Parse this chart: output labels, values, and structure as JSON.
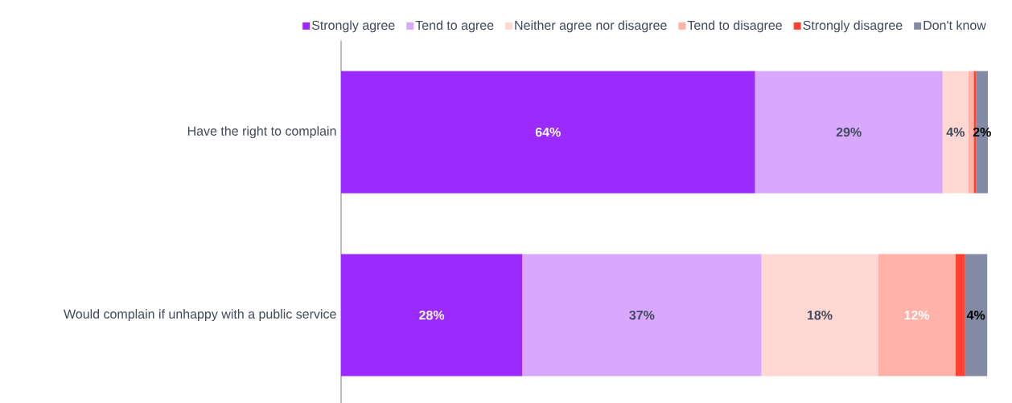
{
  "chart_data": {
    "type": "bar",
    "orientation": "horizontal",
    "stacked": true,
    "categories": [
      "Have the right to complain",
      "Would complain if unhappy with a public service"
    ],
    "xlim": [
      0,
      100
    ],
    "tick_labels": "y",
    "legend": "top",
    "series": [
      {
        "name": "Strongly agree",
        "color": "#9b2aff",
        "values": [
          64,
          28
        ],
        "value_labels": [
          "64%",
          "28%"
        ]
      },
      {
        "name": "Tend to agree",
        "color": "#d8a8ff",
        "values": [
          29,
          37
        ],
        "value_labels": [
          "29%",
          "37%"
        ]
      },
      {
        "name": "Neither agree nor disagree",
        "color": "#ffd8d3",
        "values": [
          4,
          18
        ],
        "value_labels": [
          "4%",
          "18%"
        ]
      },
      {
        "name": "Tend to disagree",
        "color": "#ffb2a8",
        "values": [
          0.8,
          12
        ],
        "value_labels": [
          null,
          "12%"
        ]
      },
      {
        "name": "Strongly disagree",
        "color": "#ff4130",
        "values": [
          0.4,
          1.4
        ],
        "value_labels": [
          null,
          null
        ]
      },
      {
        "name": "Don't know",
        "color": "#828ba3",
        "values": [
          1.8,
          3.5
        ],
        "value_labels": [
          "2%",
          "4%"
        ]
      }
    ]
  }
}
